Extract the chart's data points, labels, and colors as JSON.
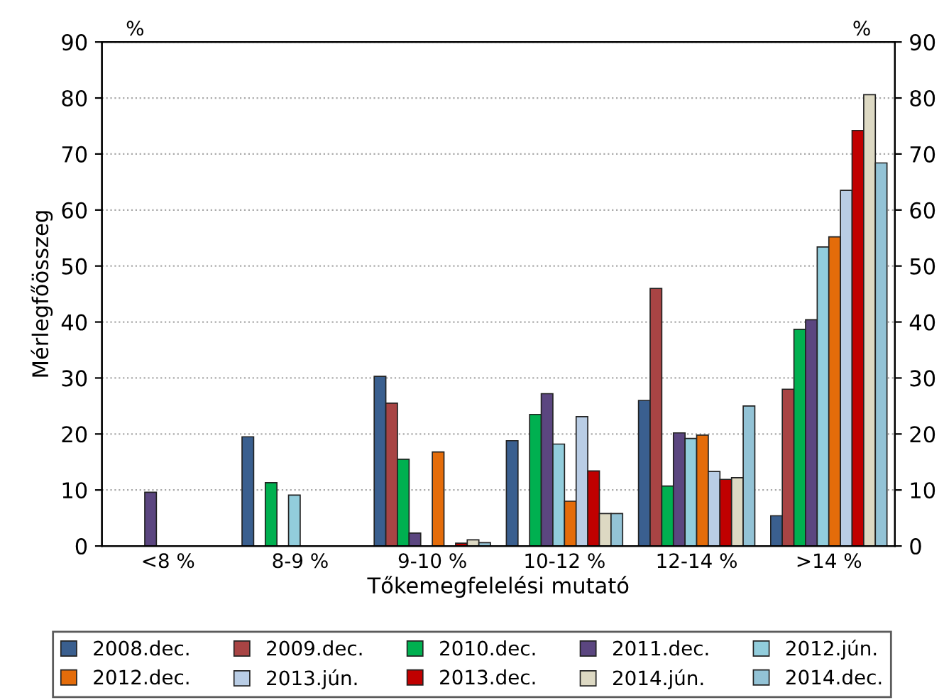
{
  "chart_data": {
    "type": "bar",
    "xlabel": "Tőkemegfelelési mutató",
    "ylabel": "Mérlegfőösszeg",
    "annotations": [
      "%",
      "%"
    ],
    "categories": [
      "<8 %",
      "8-9 %",
      "9-10 %",
      "10-12 %",
      "12-14 %",
      ">14 %"
    ],
    "series": [
      {
        "name": "2008.dec.",
        "color": "#3a5f8f",
        "values": [
          null,
          19.5,
          30.3,
          18.8,
          26,
          5.4
        ]
      },
      {
        "name": "2009.dec.",
        "color": "#a84444",
        "values": [
          null,
          null,
          25.5,
          null,
          46,
          28
        ]
      },
      {
        "name": "2010.dec.",
        "color": "#00b050",
        "values": [
          null,
          11.3,
          15.5,
          23.5,
          10.7,
          38.7
        ]
      },
      {
        "name": "2011.dec.",
        "color": "#5b4680",
        "values": [
          9.6,
          null,
          2.3,
          27.2,
          20.2,
          40.4
        ]
      },
      {
        "name": "2012.jún.",
        "color": "#92cddc",
        "values": [
          null,
          9.1,
          null,
          18.2,
          19.2,
          53.4
        ]
      },
      {
        "name": "2012.dec.",
        "color": "#e46c0a",
        "values": [
          null,
          null,
          16.8,
          8,
          19.8,
          55.2
        ]
      },
      {
        "name": "2013.jún.",
        "color": "#b9cde5",
        "values": [
          null,
          null,
          null,
          23.1,
          13.3,
          63.5
        ]
      },
      {
        "name": "2013.dec.",
        "color": "#c00000",
        "values": [
          null,
          null,
          0.5,
          13.4,
          11.9,
          74.2
        ]
      },
      {
        "name": "2014.jún.",
        "color": "#ddd9c3",
        "values": [
          null,
          null,
          1.1,
          5.8,
          12.2,
          80.6
        ]
      },
      {
        "name": "2014.dec.",
        "color": "#93c3d6",
        "values": [
          null,
          null,
          0.6,
          5.8,
          25,
          68.4
        ]
      }
    ],
    "ylim": [
      0,
      90
    ],
    "yticks": [
      0,
      10,
      20,
      30,
      40,
      50,
      60,
      70,
      80,
      90
    ],
    "y2lim": [
      0,
      90
    ],
    "y2ticks": [
      0,
      10,
      20,
      30,
      40,
      50,
      60,
      70,
      80,
      90
    ],
    "grid": "y",
    "legend": "bottom"
  }
}
